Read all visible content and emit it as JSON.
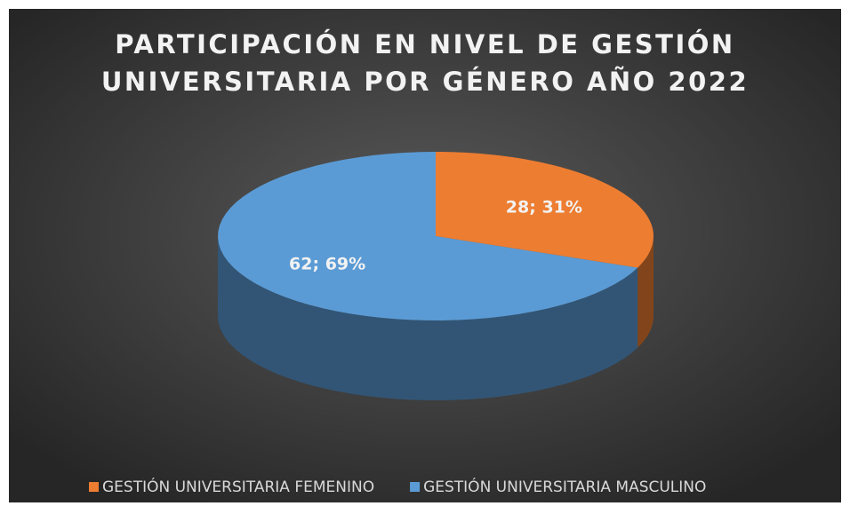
{
  "chart_data": {
    "type": "pie3d",
    "title": [
      "PARTICIPACIÓN EN NIVEL DE GESTIÓN",
      "UNIVERSITARIA POR GÉNERO AÑO 2022"
    ],
    "categories": [
      "GESTIÓN UNIVERSITARIA FEMENINO",
      "GESTIÓN UNIVERSITARIA MASCULINO"
    ],
    "values": [
      28,
      62
    ],
    "value_labels": [
      "28; 31%",
      "62; 69%"
    ],
    "colors": [
      "#ed7d31",
      "#5b9bd5"
    ],
    "legend": "bottom"
  }
}
